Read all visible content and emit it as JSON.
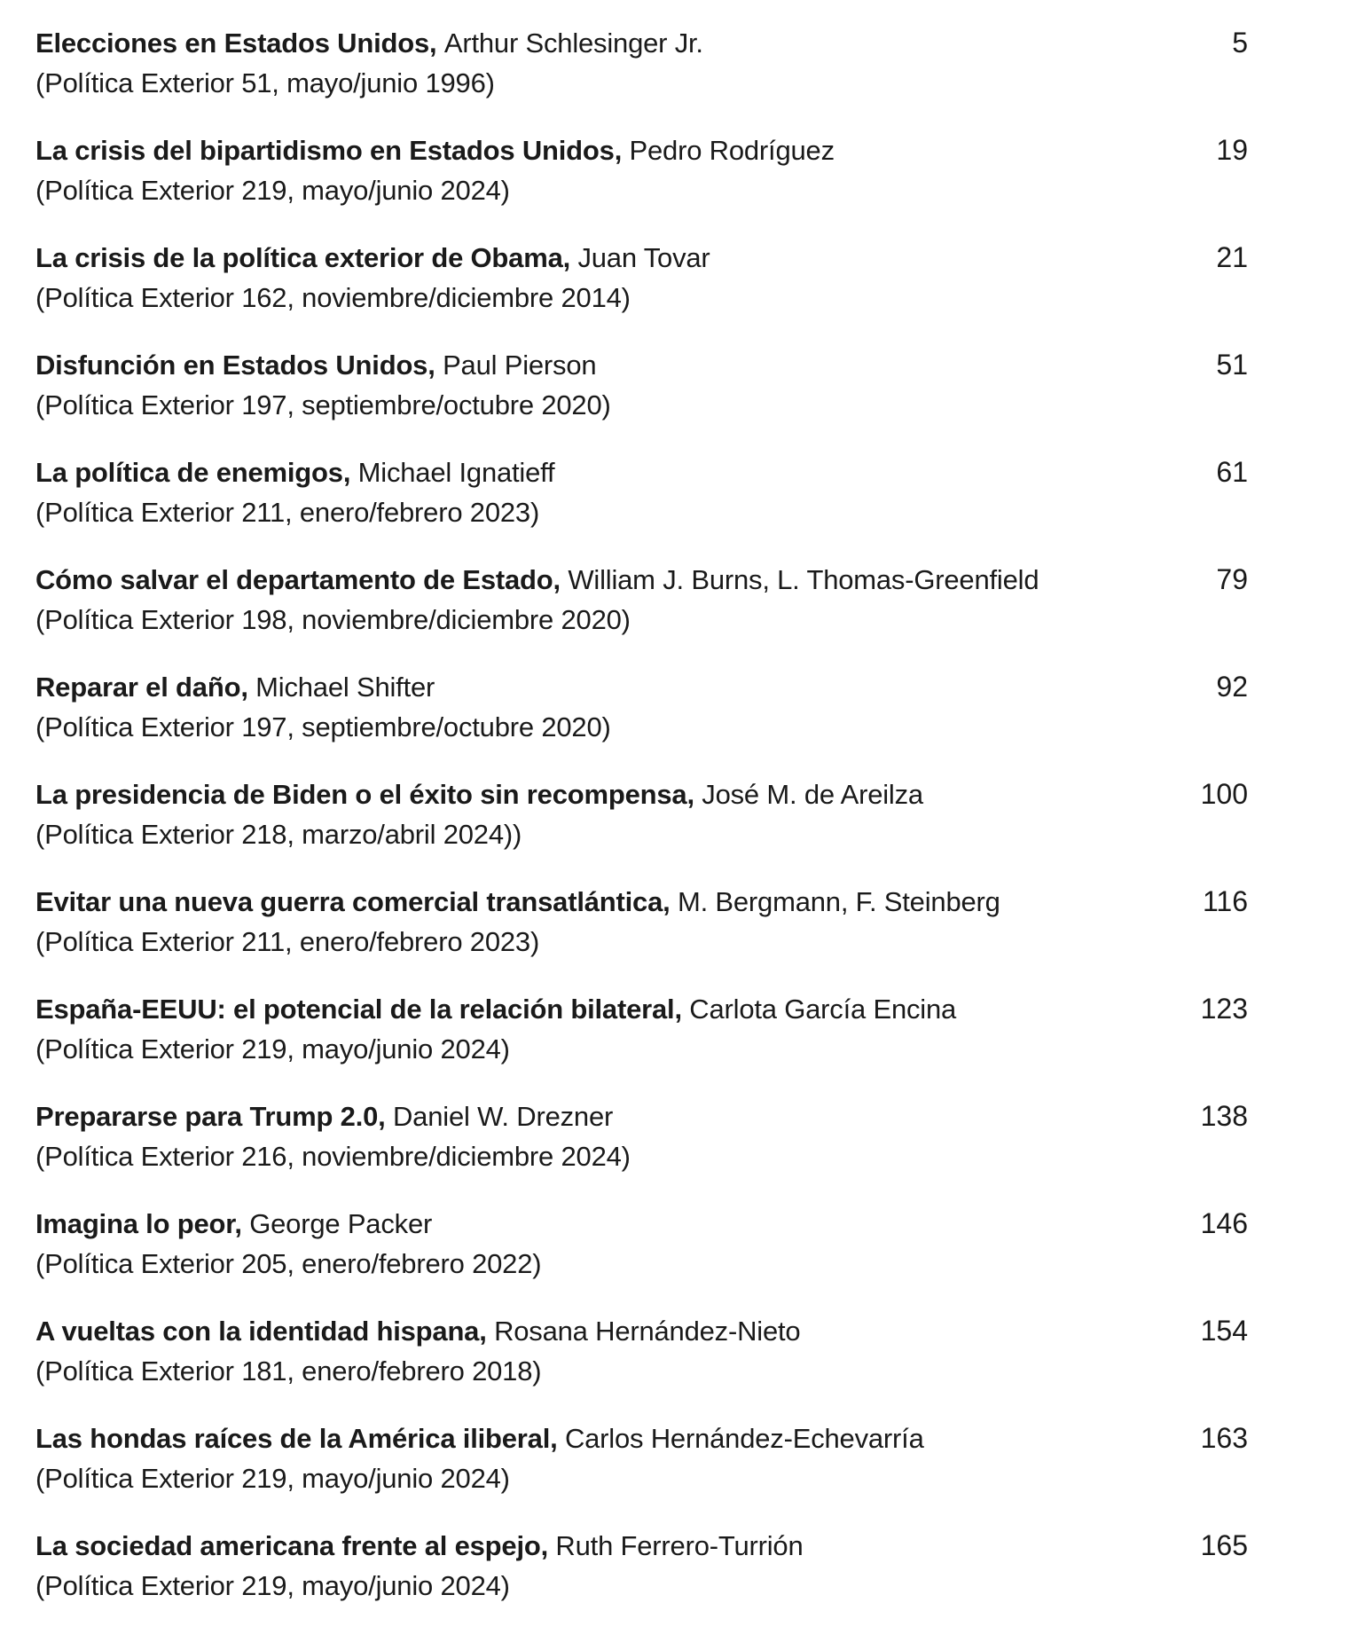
{
  "toc": {
    "separator": ", ",
    "text_color": "#1a1a1a",
    "background_color": "#ffffff",
    "entries": [
      {
        "title": "Elecciones en Estados Unidos",
        "author": "Arthur Schlesinger Jr.",
        "page": "5",
        "source": "(Política Exterior 51, mayo/junio 1996)"
      },
      {
        "title": "La crisis del bipartidismo en Estados Unidos",
        "author": "Pedro Rodríguez",
        "page": "19",
        "source": "(Política Exterior 219, mayo/junio 2024)"
      },
      {
        "title": "La crisis de la política exterior de Obama",
        "author": "Juan Tovar",
        "page": "21",
        "source": "(Política Exterior 162, noviembre/diciembre 2014)"
      },
      {
        "title": "Disfunción en Estados Unidos",
        "author": "Paul Pierson",
        "page": "51",
        "source": "(Política Exterior 197, septiembre/octubre 2020)"
      },
      {
        "title": "La política de enemigos",
        "author": "Michael Ignatieff",
        "page": "61",
        "source": "(Política Exterior 211, enero/febrero 2023)"
      },
      {
        "title": "Cómo salvar el departamento de Estado",
        "author": "William J. Burns, L. Thomas-Greenfield",
        "page": "79",
        "source": "(Política Exterior 198, noviembre/diciembre 2020)"
      },
      {
        "title": "Reparar el daño",
        "author": "Michael Shifter",
        "page": "92",
        "source": "(Política Exterior 197, septiembre/octubre 2020)"
      },
      {
        "title": "La presidencia de Biden o el éxito sin recompensa",
        "author": "José M. de Areilza",
        "page": "100",
        "source": "(Política Exterior 218, marzo/abril 2024))"
      },
      {
        "title": "Evitar una nueva guerra comercial transatlántica",
        "author": "M. Bergmann, F. Steinberg",
        "page": "116",
        "source": "(Política Exterior 211, enero/febrero 2023)"
      },
      {
        "title": "España-EEUU: el potencial de la relación bilateral",
        "author": "Carlota García Encina",
        "page": "123",
        "source": "(Política Exterior 219, mayo/junio 2024)"
      },
      {
        "title": "Prepararse para Trump 2.0",
        "author": "Daniel W. Drezner",
        "page": "138",
        "source": "(Política Exterior 216, noviembre/diciembre 2024)"
      },
      {
        "title": "Imagina lo peor",
        "author": "George Packer",
        "page": "146",
        "source": "(Política Exterior 205, enero/febrero 2022)"
      },
      {
        "title": "A vueltas con la identidad hispana",
        "author": "Rosana Hernández-Nieto",
        "page": "154",
        "source": "(Política Exterior 181, enero/febrero 2018)"
      },
      {
        "title": "Las hondas raíces de la América iliberal",
        "author": "Carlos Hernández-Echevarría",
        "page": "163",
        "source": "(Política Exterior 219, mayo/junio 2024)"
      },
      {
        "title": "La sociedad americana frente al espejo",
        "author": "Ruth Ferrero-Turrión",
        "page": "165",
        "source": "(Política Exterior 219, mayo/junio 2024)"
      }
    ]
  }
}
